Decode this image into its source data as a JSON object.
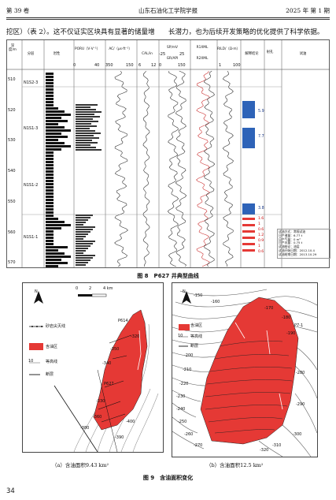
{
  "header": {
    "volume": "第 39 卷",
    "journal": "山东石油化工学院学报",
    "issue": "2025 年   第 1 期"
  },
  "body_text": "挖区）（表 2）。这不仅证实区块具有显著的储量增　　长潜力，也为后续开发策略的优化提供了科学依据。",
  "log": {
    "headers": [
      "深度/m",
      "分层",
      "岩性",
      "PORU（V·V⁻¹）",
      "AC/（μs·ft⁻¹）",
      "CAL/in",
      "SP/mV",
      "GR/API",
      "R1XML",
      "R2XML",
      "RILD/（Ω·m）",
      "解释结论",
      "射孔",
      "试油"
    ],
    "por_scale": [
      "0",
      "40"
    ],
    "ac_scale": [
      "350",
      "150"
    ],
    "cal_scale": [
      "6",
      "12"
    ],
    "sp_scale": [
      "-25",
      "25"
    ],
    "gr_scale": [
      "0",
      "150"
    ],
    "rild_scale": [
      "1",
      "100"
    ],
    "depths": [
      "510",
      "520",
      "530",
      "540",
      "550",
      "560",
      "570"
    ],
    "zones": [
      "N1S2-3",
      "N1S1-3",
      "N1S1-2",
      "N1S1-1"
    ],
    "interp_values": [
      "5.9",
      "7.7",
      "3.8",
      "1.6",
      "1",
      "0.6",
      "1.2",
      "0.9",
      "1",
      "0.6"
    ],
    "test_note": [
      "试油方式：常规试油",
      "日产液量：6.77 t",
      "日产气量：0 m³",
      "日产水量：0.75 t",
      "试油结论：油层",
      "试油开始日期：2012.10.4",
      "试油结束日期：2013.10.29"
    ]
  },
  "fig8_caption": "图 8　P627 井典型曲线",
  "map_a": {
    "legend": [
      "砂岩尖灭线",
      "含油区",
      "等高线",
      "断层"
    ],
    "contour_prefix": "10",
    "scale": [
      "0",
      "2",
      "4 km"
    ],
    "north": "N",
    "labels": [
      "P614",
      "P627",
      "-350",
      "-340",
      "-330",
      "-320",
      "-360",
      "-380",
      "-390",
      "-400"
    ],
    "subcaption": "（a）含油面积9.43 km²"
  },
  "map_b": {
    "legend": [
      "含油区",
      "等高线",
      "断层"
    ],
    "contour_prefix": "10",
    "north": "N",
    "labels": [
      "-150",
      "-160",
      "-170",
      "-180",
      "-190",
      "-200",
      "-210",
      "-220",
      "-230",
      "-240",
      "-250",
      "-260",
      "-270",
      "-280",
      "-290",
      "-300",
      "-310",
      "-320",
      "P7-1"
    ],
    "subcaption": "（b）含油面积12.5 km²"
  },
  "fig9_caption": "图 9　含油面积变化",
  "page_number": "34",
  "colors": {
    "oil": "#e53935",
    "interp_blue": "#2e63b8"
  }
}
